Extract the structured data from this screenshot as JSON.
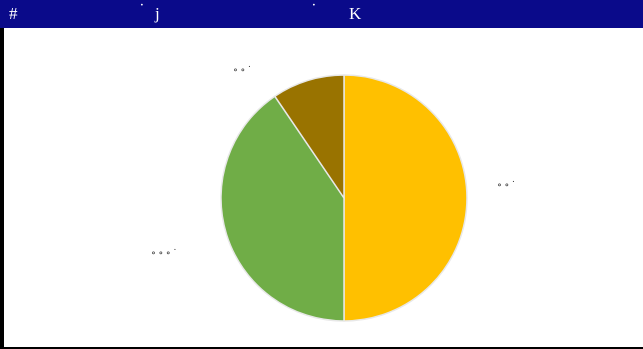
{
  "window": {
    "title_glyphs": [
      "#",
      "˙",
      "j",
      "˙",
      "K"
    ],
    "title_bar_color": "#0a0a8a",
    "border_color": "#000000"
  },
  "chart_data": {
    "type": "pie",
    "title": "",
    "start_angle_deg": 0,
    "direction": "clockwise",
    "slices": [
      {
        "label": "∘ ∘ ˙",
        "value": 50,
        "color": "#ffc000"
      },
      {
        "label": "∘ ∘ ∘ ˙",
        "value": 40.5,
        "color": "#70ad47"
      },
      {
        "label": "∘ ∘ ˙",
        "value": 9.5,
        "color": "#997300"
      }
    ],
    "slice_border_color": "#e8e8e8",
    "legend": "none"
  }
}
